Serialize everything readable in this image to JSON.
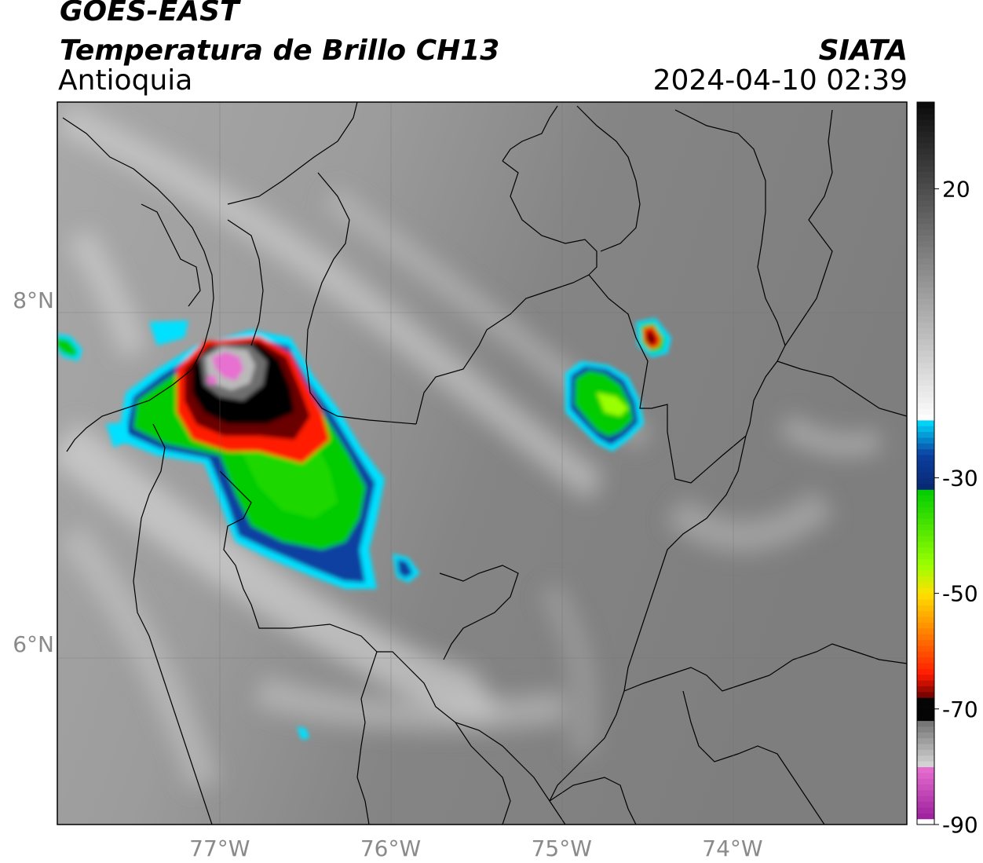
{
  "header": {
    "satellite": "GOES-EAST",
    "product": "Temperatura de Brillo CH13",
    "region": "Antioquia",
    "agency": "SIATA",
    "datetime": "2024-04-10 02:39"
  },
  "map": {
    "lon_range": [
      -77.95,
      -72.98
    ],
    "lat_range": [
      4.95,
      9.15
    ],
    "lon_ticks": [
      {
        "value": -77,
        "label": "77°W"
      },
      {
        "value": -76,
        "label": "76°W"
      },
      {
        "value": -75,
        "label": "75°W"
      },
      {
        "value": -74,
        "label": "74°W"
      }
    ],
    "lat_ticks": [
      {
        "value": 8,
        "label": "8°N"
      },
      {
        "value": 6,
        "label": "6°N"
      }
    ],
    "grid": true
  },
  "colorbar": {
    "vmin": -90,
    "vmax": 35,
    "ticks": [
      {
        "value": 20,
        "label": "20"
      },
      {
        "value": -30,
        "label": "-30"
      },
      {
        "value": -50,
        "label": "-50"
      },
      {
        "value": -70,
        "label": "-70"
      },
      {
        "value": -90,
        "label": "-90"
      }
    ],
    "colors": {
      "magenta": "#9c1f9c",
      "pink": "#e76fd0",
      "cyan": "#00e0ff",
      "blue": "#0b3fa0",
      "navy": "#082870",
      "green": "#00cc00",
      "lime": "#9aff00",
      "yellow": "#ffe000",
      "orange": "#ff8c00",
      "red": "#ff1a00",
      "darkred": "#6a0000",
      "black": "#050505",
      "white": "#ffffff"
    }
  }
}
